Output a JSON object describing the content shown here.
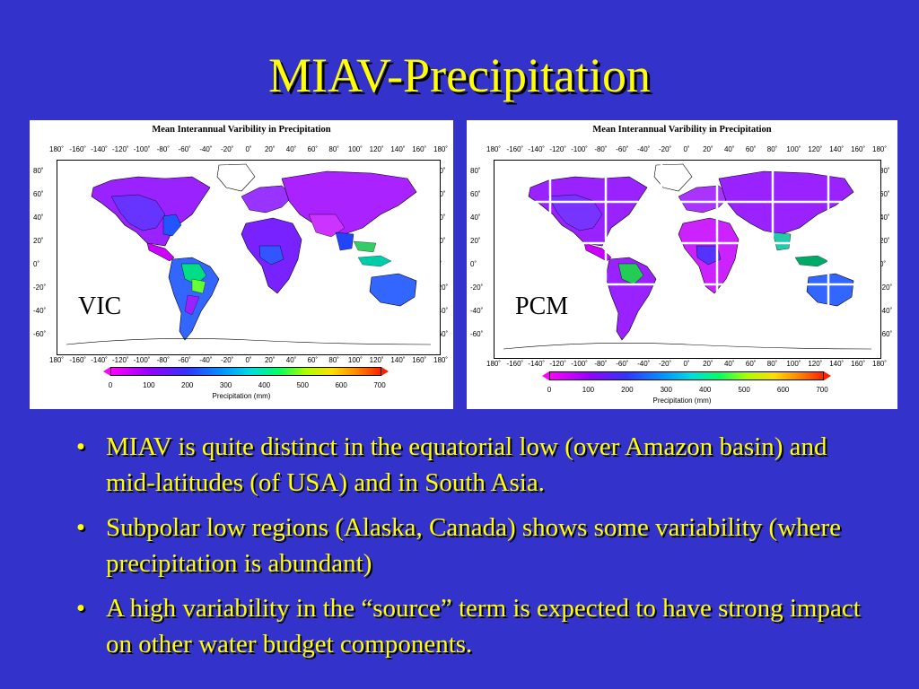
{
  "slide": {
    "title": "MIAV-Precipitation",
    "background": "#3333cc",
    "text_color": "#ffff00"
  },
  "maps": [
    {
      "id": "vic",
      "title": "Mean Interannual Varibility in Precipitation",
      "model_label": "VIC",
      "lon_ticks": [
        "180˚",
        "-160˚",
        "-140˚",
        "-120˚",
        "-100˚",
        "-80˚",
        "-60˚",
        "-40˚",
        "-20˚",
        "0˚",
        "20˚",
        "40˚",
        "60˚",
        "80˚",
        "100˚",
        "120˚",
        "140˚",
        "160˚",
        "180˚"
      ],
      "lat_ticks": [
        "80˚",
        "60˚",
        "40˚",
        "20˚",
        "0˚",
        "-20˚",
        "-40˚",
        "-60˚"
      ],
      "colorbar_ticks": [
        "0",
        "100",
        "200",
        "300",
        "400",
        "500",
        "600",
        "700"
      ],
      "colorbar_label": "Precipitation (mm)"
    },
    {
      "id": "pcm",
      "title": "Mean Interannual Varibility in Precipitation",
      "model_label": "PCM",
      "lon_ticks": [
        "180˚",
        "-160˚",
        "-140˚",
        "-120˚",
        "-100˚",
        "-80˚",
        "-60˚",
        "-40˚",
        "-20˚",
        "0˚",
        "20˚",
        "40˚",
        "60˚",
        "80˚",
        "100˚",
        "120˚",
        "140˚",
        "160˚",
        "180˚"
      ],
      "lat_ticks": [
        "80˚",
        "60˚",
        "40˚",
        "20˚",
        "0˚",
        "-20˚",
        "-40˚",
        "-60˚"
      ],
      "colorbar_ticks": [
        "0",
        "100",
        "200",
        "300",
        "400",
        "500",
        "600",
        "700"
      ],
      "colorbar_label": "Precipitation (mm)"
    }
  ],
  "bullets": [
    "MIAV is quite distinct in the equatorial low (over Amazon basin) and mid-latitudes (of USA) and in South Asia.",
    "Subpolar low regions (Alaska, Canada) shows some variability (where precipitation is abundant)",
    "A high variability in the “source” term is expected to have strong impact on other water budget components."
  ],
  "bullet_symbol": "•"
}
